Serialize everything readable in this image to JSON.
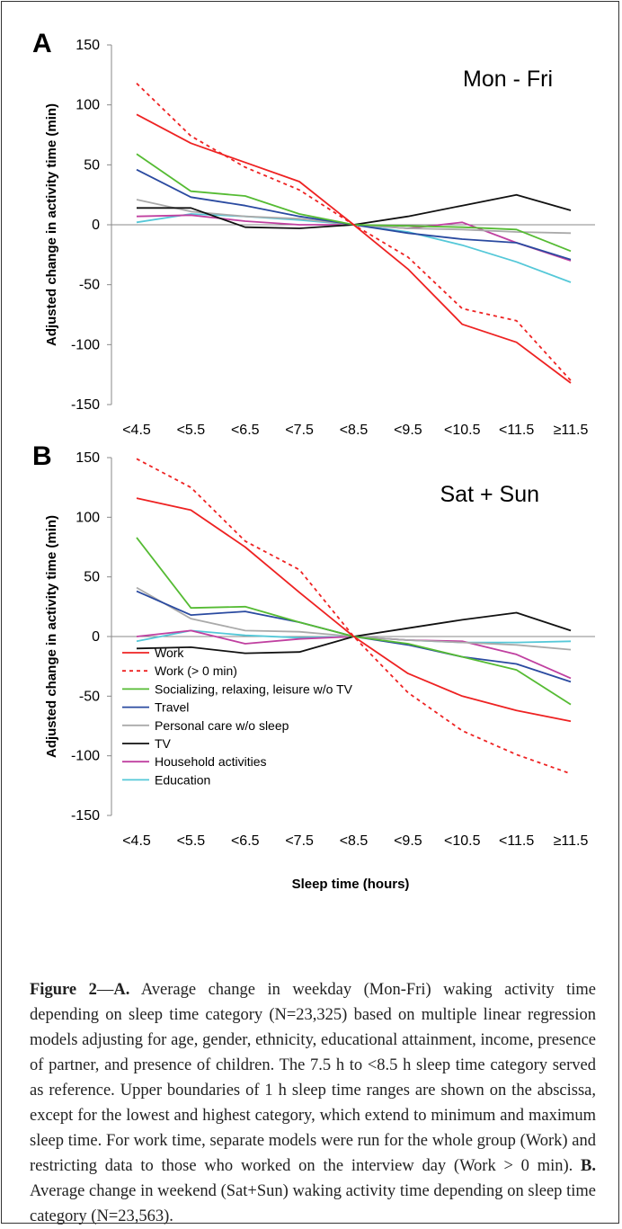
{
  "colors": {
    "Work": "#ee2222",
    "Work (> 0 min)": "#ee2222",
    "Socializing, relaxing, leisure w/o TV": "#55bb33",
    "Travel": "#2a4aa0",
    "Personal care w/o sleep": "#aaaaaa",
    "TV": "#111111",
    "Household activities": "#c040a0",
    "Education": "#55c8d8"
  },
  "chart_data": [
    {
      "type": "line",
      "panel": "A",
      "title": "Mon - Fri",
      "ylabel": "Adjusted change in activity time (min)",
      "xlabel": "",
      "categories": [
        "<4.5",
        "<5.5",
        "<6.5",
        "<7.5",
        "<8.5",
        "<9.5",
        "<10.5",
        "<11.5",
        "≥11.5"
      ],
      "ylim": [
        -150,
        150
      ],
      "yticks": [
        150,
        100,
        50,
        0,
        -50,
        -100,
        -150
      ],
      "series": [
        {
          "name": "Work",
          "values": [
            92,
            68,
            52,
            36,
            0,
            -37,
            -83,
            -98,
            -132
          ]
        },
        {
          "name": "Work (> 0 min)",
          "values": [
            118,
            74,
            48,
            29,
            0,
            -27,
            -70,
            -80,
            -130
          ]
        },
        {
          "name": "Socializing, relaxing, leisure w/o TV",
          "values": [
            59,
            28,
            24,
            9,
            0,
            -1,
            -2,
            -4,
            -22
          ]
        },
        {
          "name": "Travel",
          "values": [
            46,
            23,
            16,
            7,
            0,
            -7,
            -12,
            -15,
            -29
          ]
        },
        {
          "name": "Personal care w/o sleep",
          "values": [
            21,
            11,
            7,
            5,
            0,
            -3,
            -4,
            -6,
            -7
          ]
        },
        {
          "name": "TV",
          "values": [
            14,
            14,
            -2,
            -3,
            0,
            7,
            16,
            25,
            12
          ]
        },
        {
          "name": "Household activities",
          "values": [
            7,
            8,
            3,
            0,
            0,
            -3,
            2,
            -15,
            -30
          ]
        },
        {
          "name": "Education",
          "values": [
            2,
            9,
            7,
            4,
            0,
            -6,
            -17,
            -31,
            -48
          ]
        }
      ]
    },
    {
      "type": "line",
      "panel": "B",
      "title": "Sat + Sun",
      "ylabel": "Adjusted change in activity time (min)",
      "xlabel": "Sleep time (hours)",
      "categories": [
        "<4.5",
        "<5.5",
        "<6.5",
        "<7.5",
        "<8.5",
        "<9.5",
        "<10.5",
        "<11.5",
        "≥11.5"
      ],
      "ylim": [
        -150,
        150
      ],
      "yticks": [
        150,
        100,
        50,
        0,
        -50,
        -100,
        -150
      ],
      "legend_position": "bottom-left",
      "series": [
        {
          "name": "Work",
          "values": [
            116,
            106,
            75,
            37,
            0,
            -31,
            -50,
            -62,
            -71
          ]
        },
        {
          "name": "Work (> 0 min)",
          "values": [
            149,
            125,
            80,
            56,
            0,
            -47,
            -79,
            -99,
            -115
          ]
        },
        {
          "name": "Socializing, relaxing, leisure w/o TV",
          "values": [
            83,
            24,
            25,
            12,
            0,
            -6,
            -17,
            -28,
            -57
          ]
        },
        {
          "name": "Travel",
          "values": [
            38,
            18,
            21,
            12,
            0,
            -7,
            -17,
            -23,
            -38
          ]
        },
        {
          "name": "Personal care w/o sleep",
          "values": [
            41,
            15,
            5,
            4,
            0,
            -3,
            -5,
            -7,
            -11
          ]
        },
        {
          "name": "TV",
          "values": [
            -10,
            -9,
            -14,
            -13,
            0,
            7,
            14,
            20,
            5
          ]
        },
        {
          "name": "Household activities",
          "values": [
            0,
            5,
            -6,
            -2,
            0,
            -3,
            -4,
            -15,
            -35
          ]
        },
        {
          "name": "Education",
          "values": [
            -4,
            5,
            1,
            -1,
            0,
            -3,
            -5,
            -5,
            -4
          ]
        }
      ]
    }
  ],
  "legend": [
    "Work",
    "Work (> 0 min)",
    "Socializing, relaxing, leisure w/o TV",
    "Travel",
    "Personal care w/o sleep",
    "TV",
    "Household activities",
    "Education"
  ],
  "caption": {
    "label": "Figure 2",
    "dash": "—",
    "a_label": "A.",
    "a_text": " Average change in weekday (Mon-Fri) waking activity time depending on sleep time category (N=23,325) based on multiple linear regression models adjusting for age, gender, ethnicity, educational attainment, income, presence of partner, and presence of children. The 7.5 h to <8.5 h sleep time category served as reference. Upper boundaries of 1 h sleep time ranges are shown on the abscissa, except for the lowest and highest category, which extend to minimum and maximum sleep time. For work time, separate models were run for the whole group (Work) and restricting data to those who worked on the interview day (Work > 0 min). ",
    "b_label": "B.",
    "b_text": " Average change in weekend (Sat+Sun) waking activity time depending on sleep time category (N=23,563)."
  }
}
